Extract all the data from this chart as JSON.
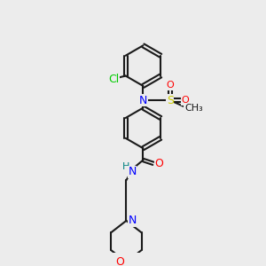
{
  "bg_color": "#ececec",
  "bond_color": "#1a1a1a",
  "line_width": 1.5,
  "atom_colors": {
    "N": "#0000ff",
    "O": "#ff0000",
    "Cl": "#00cc00",
    "S": "#cccc00",
    "H_amide": "#008080",
    "C": "#1a1a1a"
  },
  "font_size": 9,
  "font_size_small": 8
}
